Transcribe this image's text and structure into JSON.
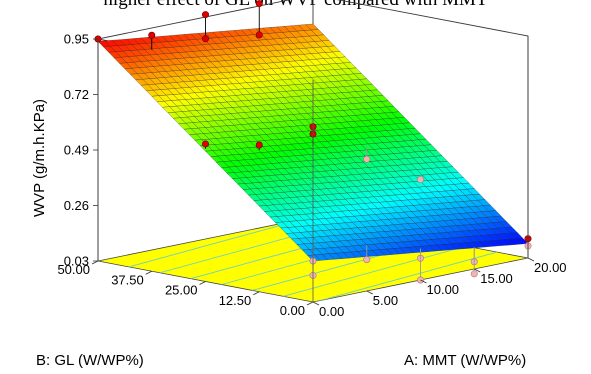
{
  "caption": "higher effect of GL on WVP compared with MMT",
  "chart_data": {
    "type": "surface3d",
    "zlabel": "WVP (g/m.h.KPa)",
    "xlabel": "A: MMT (W/WP%)",
    "ylabel": "B: GL (W/WP%)",
    "x_ticks": [
      "0.00",
      "5.00",
      "10.00",
      "15.00",
      "20.00"
    ],
    "y_ticks": [
      "0.00",
      "12.50",
      "25.00",
      "37.50",
      "50.00"
    ],
    "z_ticks": [
      "0.03",
      "0.26",
      "0.49",
      "0.72",
      "0.95"
    ],
    "xlim": [
      0,
      20
    ],
    "ylim": [
      0,
      50
    ],
    "zlim": [
      0.03,
      0.95
    ],
    "surface_corners": {
      "mmt0_gl0": 0.2,
      "mmt20_gl0": 0.09,
      "mmt0_gl50": 0.94,
      "mmt20_gl50": 0.83
    },
    "floor_color": "#ffff00",
    "colormap": [
      "#0000ff",
      "#00ffff",
      "#00ff00",
      "#ffff00",
      "#ff0000"
    ],
    "design_points": [
      {
        "mmt": 0,
        "gl": 50,
        "wvp": 0.95,
        "pred": 0.86
      },
      {
        "mmt": 5,
        "gl": 50,
        "wvp": 0.92,
        "pred": 0.86
      },
      {
        "mmt": 10,
        "gl": 50,
        "wvp": 0.96,
        "pred": 0.86
      },
      {
        "mmt": 10,
        "gl": 50,
        "wvp": 0.86,
        "pred": 0.86
      },
      {
        "mmt": 15,
        "gl": 50,
        "wvp": 0.96,
        "pred": 0.83
      },
      {
        "mmt": 15,
        "gl": 50,
        "wvp": 0.83,
        "pred": 0.83
      },
      {
        "mmt": 0,
        "gl": 25,
        "wvp": 0.6,
        "pred": 0.58
      },
      {
        "mmt": 5,
        "gl": 25,
        "wvp": 0.55,
        "pred": 0.53
      },
      {
        "mmt": 10,
        "gl": 25,
        "wvp": 0.58,
        "pred": 0.5
      },
      {
        "mmt": 10,
        "gl": 25,
        "wvp": 0.55,
        "pred": 0.5
      },
      {
        "mmt": 15,
        "gl": 25,
        "wvp": 0.4,
        "pred": 0.45
      },
      {
        "mmt": 0,
        "gl": 0,
        "wvp": 0.2,
        "pred": 0.27
      },
      {
        "mmt": 0,
        "gl": 0,
        "wvp": 0.14,
        "pred": 0.27
      },
      {
        "mmt": 5,
        "gl": 0,
        "wvp": 0.16,
        "pred": 0.22
      },
      {
        "mmt": 10,
        "gl": 0,
        "wvp": 0.12,
        "pred": 0.16
      },
      {
        "mmt": 10,
        "gl": 0,
        "wvp": 0.03,
        "pred": 0.16
      },
      {
        "mmt": 15,
        "gl": 0,
        "wvp": 0.06,
        "pred": 0.12
      },
      {
        "mmt": 15,
        "gl": 0,
        "wvp": 0.01,
        "pred": 0.12
      },
      {
        "mmt": 20,
        "gl": 25,
        "wvp": 0.27,
        "pred": 0.28
      },
      {
        "mmt": 20,
        "gl": 0,
        "wvp": 0.11,
        "pred": 0.09
      },
      {
        "mmt": 20,
        "gl": 0,
        "wvp": 0.08,
        "pred": 0.09
      }
    ]
  }
}
